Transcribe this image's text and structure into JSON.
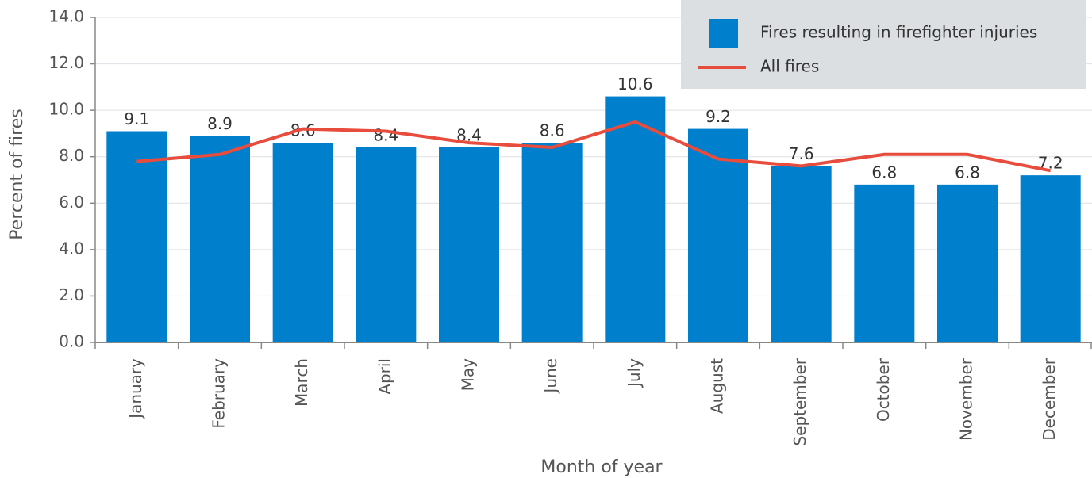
{
  "chart_data": {
    "type": "bar",
    "x_label": "Month of year",
    "y_label": "Percent of fires",
    "categories": [
      "January",
      "February",
      "March",
      "April",
      "May",
      "June",
      "July",
      "August",
      "September",
      "October",
      "November",
      "December"
    ],
    "series": [
      {
        "name": "Fires resulting in firefighter injuries",
        "type": "bar",
        "color": "#0080cc",
        "values": [
          9.1,
          8.9,
          8.6,
          8.4,
          8.4,
          8.6,
          10.6,
          9.2,
          7.6,
          6.8,
          6.8,
          7.2
        ]
      },
      {
        "name": "All fires",
        "type": "line",
        "color": "#e84c3d",
        "values": [
          7.8,
          8.1,
          9.2,
          9.1,
          8.6,
          8.4,
          9.5,
          7.9,
          7.6,
          8.1,
          8.1,
          7.4
        ]
      }
    ],
    "ylim": [
      0,
      14
    ],
    "yticks": [
      {
        "value": 0,
        "label": "0.0"
      },
      {
        "value": 2,
        "label": "2.0"
      },
      {
        "value": 4,
        "label": "4.0"
      },
      {
        "value": 6,
        "label": "6.0"
      },
      {
        "value": 8,
        "label": "8.0"
      },
      {
        "value": 10,
        "label": "10.0"
      },
      {
        "value": 12,
        "label": "12.0"
      },
      {
        "value": 14,
        "label": "14.0"
      }
    ],
    "grid": true,
    "legend": "top-right"
  }
}
